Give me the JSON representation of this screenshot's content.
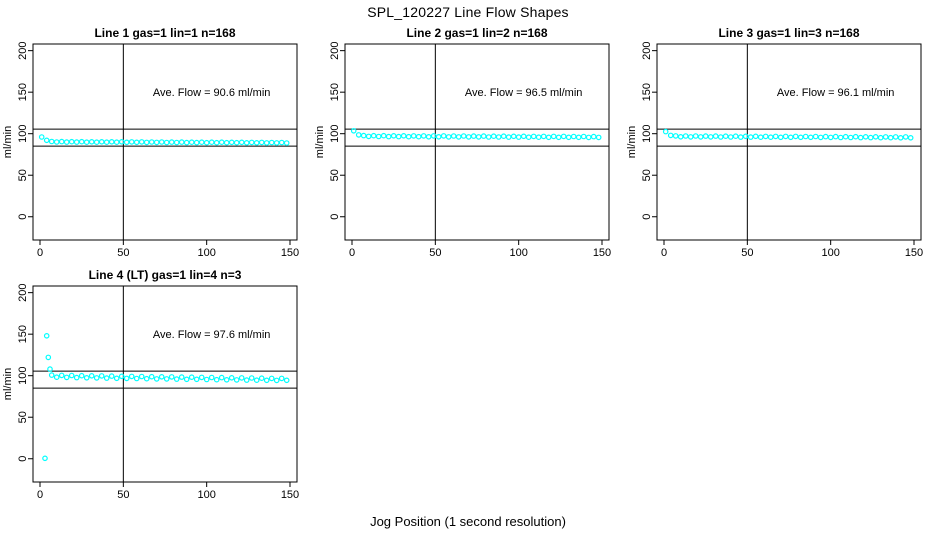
{
  "figure": {
    "title": "SPL_120227  Line Flow Shapes",
    "xlabel": "Jog Position (1 second resolution)",
    "background_color": "#ffffff",
    "point_color": "#00FFFF",
    "axis_color": "#000000"
  },
  "chart_data": [
    {
      "type": "scatter",
      "title": "Line 1 gas=1 lin=1 n=168",
      "gas": 1,
      "lin": 1,
      "n": 168,
      "annotation": "Ave. Flow =  90.6  ml/min",
      "ave_flow_ml_min": 90.6,
      "ylabel": "ml/min",
      "xticks": [
        0,
        50,
        100,
        150
      ],
      "yticks": [
        0,
        50,
        100,
        150,
        200
      ],
      "xlim": [
        -4.2,
        154.2
      ],
      "ylim": [
        -28,
        208
      ],
      "ref_hlines": [
        105.5,
        85
      ],
      "ref_vline": 50,
      "annotation_xy": [
        103,
        150
      ],
      "x": [
        1,
        4,
        7,
        10,
        13,
        16,
        19,
        22,
        25,
        28,
        31,
        34,
        37,
        40,
        43,
        46,
        49,
        52,
        55,
        58,
        61,
        64,
        67,
        70,
        73,
        76,
        79,
        82,
        85,
        88,
        91,
        94,
        97,
        100,
        103,
        106,
        109,
        112,
        115,
        118,
        121,
        124,
        127,
        130,
        133,
        136,
        139,
        142,
        145,
        148
      ],
      "y": [
        96,
        92,
        90.6,
        90.0,
        90.5,
        89.9,
        90.4,
        89.9,
        90.4,
        89.8,
        90.3,
        89.8,
        90.3,
        89.7,
        90.2,
        89.7,
        90.2,
        89.6,
        90.1,
        89.6,
        90.1,
        89.5,
        90.0,
        89.5,
        90.0,
        89.4,
        89.9,
        89.4,
        89.9,
        89.3,
        89.8,
        89.3,
        89.8,
        89.2,
        89.7,
        89.2,
        89.7,
        89.1,
        89.6,
        89.1,
        89.6,
        89.0,
        89.5,
        89.0,
        89.5,
        88.9,
        89.4,
        88.9,
        89.4,
        88.8
      ]
    },
    {
      "type": "scatter",
      "title": "Line 2 gas=1 lin=2 n=168",
      "gas": 1,
      "lin": 2,
      "n": 168,
      "annotation": "Ave. Flow =  96.5  ml/min",
      "ave_flow_ml_min": 96.5,
      "ylabel": "ml/min",
      "xticks": [
        0,
        50,
        100,
        150
      ],
      "yticks": [
        0,
        50,
        100,
        150,
        200
      ],
      "xlim": [
        -4.2,
        154.2
      ],
      "ylim": [
        -28,
        208
      ],
      "ref_hlines": [
        105.5,
        85
      ],
      "ref_vline": 50,
      "annotation_xy": [
        103,
        150
      ],
      "x": [
        1,
        4,
        7,
        10,
        13,
        16,
        19,
        22,
        25,
        28,
        31,
        34,
        37,
        40,
        43,
        46,
        49,
        52,
        55,
        58,
        61,
        64,
        67,
        70,
        73,
        76,
        79,
        82,
        85,
        88,
        91,
        94,
        97,
        100,
        103,
        106,
        109,
        112,
        115,
        118,
        121,
        124,
        127,
        130,
        133,
        136,
        139,
        142,
        145,
        148
      ],
      "y": [
        103.5,
        98.5,
        97.7,
        96.7,
        97.6,
        96.6,
        97.6,
        96.5,
        97.5,
        96.5,
        97.5,
        96.4,
        97.4,
        96.4,
        97.4,
        96.3,
        97.3,
        96.3,
        97.3,
        96.2,
        97.2,
        96.2,
        97.2,
        96.1,
        97.1,
        96.1,
        97.1,
        96.0,
        97.0,
        96.0,
        97.0,
        95.9,
        96.9,
        95.9,
        96.9,
        95.8,
        96.8,
        95.8,
        96.8,
        95.7,
        96.7,
        95.7,
        96.7,
        95.6,
        96.6,
        95.6,
        96.6,
        95.5,
        96.5,
        95.5
      ]
    },
    {
      "type": "scatter",
      "title": "Line 3 gas=1 lin=3 n=168",
      "gas": 1,
      "lin": 3,
      "n": 168,
      "annotation": "Ave. Flow =  96.1  ml/min",
      "ave_flow_ml_min": 96.1,
      "ylabel": "ml/min",
      "xticks": [
        0,
        50,
        100,
        150
      ],
      "yticks": [
        0,
        50,
        100,
        150,
        200
      ],
      "xlim": [
        -4.2,
        154.2
      ],
      "ylim": [
        -28,
        208
      ],
      "ref_hlines": [
        105.5,
        85
      ],
      "ref_vline": 50,
      "annotation_xy": [
        103,
        150
      ],
      "x": [
        1,
        4,
        7,
        10,
        13,
        16,
        19,
        22,
        25,
        28,
        31,
        34,
        37,
        40,
        43,
        46,
        49,
        52,
        55,
        58,
        61,
        64,
        67,
        70,
        73,
        76,
        79,
        82,
        85,
        88,
        91,
        94,
        97,
        100,
        103,
        106,
        109,
        112,
        115,
        118,
        121,
        124,
        127,
        130,
        133,
        136,
        139,
        142,
        145,
        148
      ],
      "y": [
        102.5,
        98.0,
        97.3,
        96.3,
        97.2,
        96.2,
        97.2,
        96.1,
        97.1,
        96.1,
        97.1,
        96.0,
        97.0,
        96.0,
        97.0,
        95.9,
        96.9,
        95.9,
        96.9,
        95.8,
        96.8,
        95.8,
        96.8,
        95.7,
        96.7,
        95.7,
        96.7,
        95.6,
        96.6,
        95.6,
        96.6,
        95.5,
        96.5,
        95.5,
        96.5,
        95.4,
        96.4,
        95.4,
        96.4,
        95.3,
        96.3,
        95.3,
        96.3,
        95.2,
        96.2,
        95.2,
        96.2,
        95.1,
        96.1,
        95.1
      ]
    },
    {
      "type": "scatter",
      "title": "Line 4 (LT) gas=1 lin=4 n=3",
      "gas": 1,
      "lin": 4,
      "n": 3,
      "annotation": "Ave. Flow =  97.6  ml/min",
      "ave_flow_ml_min": 97.6,
      "ylabel": "ml/min",
      "xticks": [
        0,
        50,
        100,
        150
      ],
      "yticks": [
        0,
        50,
        100,
        150,
        200
      ],
      "xlim": [
        -4.2,
        154.2
      ],
      "ylim": [
        -28,
        208
      ],
      "ref_hlines": [
        105.5,
        85
      ],
      "ref_vline": 50,
      "annotation_xy": [
        103,
        150
      ],
      "x": [
        3,
        4,
        5,
        6,
        7,
        10,
        13,
        16,
        19,
        22,
        25,
        28,
        31,
        34,
        37,
        40,
        43,
        46,
        49,
        52,
        55,
        58,
        61,
        64,
        67,
        70,
        73,
        76,
        79,
        82,
        85,
        88,
        91,
        94,
        97,
        100,
        103,
        106,
        109,
        112,
        115,
        118,
        121,
        124,
        127,
        130,
        133,
        136,
        139,
        142,
        145,
        148
      ],
      "y": [
        0.5,
        148,
        122,
        108,
        100.7,
        98.2,
        100.4,
        97.9,
        100.2,
        97.7,
        100.0,
        97.5,
        99.9,
        97.3,
        99.7,
        97.1,
        99.5,
        96.9,
        99.3,
        96.8,
        99.2,
        96.6,
        99.0,
        96.4,
        98.8,
        96.2,
        98.7,
        96.1,
        98.5,
        95.9,
        98.3,
        95.7,
        98.2,
        95.6,
        98.0,
        95.4,
        97.8,
        95.2,
        97.7,
        95.1,
        97.5,
        94.9,
        97.3,
        94.7,
        97.2,
        94.6,
        97.0,
        94.4,
        96.8,
        94.3,
        96.7,
        94.5
      ]
    }
  ]
}
